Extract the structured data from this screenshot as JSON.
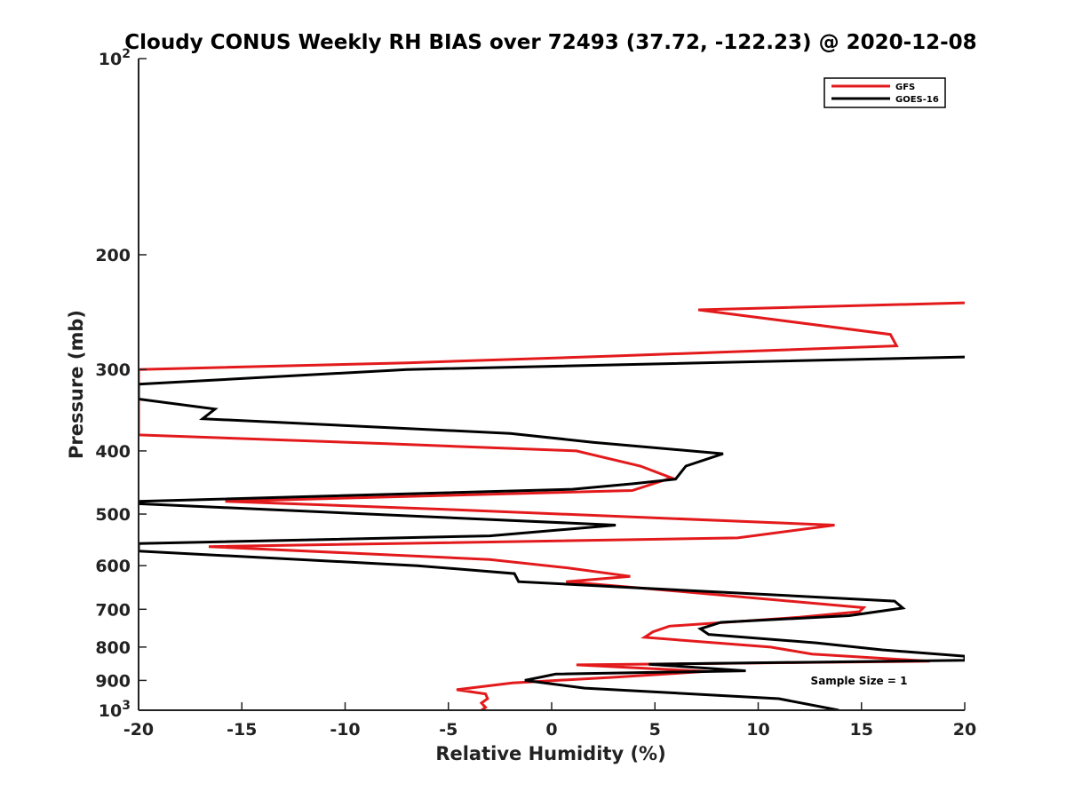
{
  "chart_data": {
    "type": "line",
    "title": "Cloudy CONUS Weekly RH BIAS over 72493 (37.72, -122.23) @ 2020-12-08",
    "xlabel": "Relative Humidity (%)",
    "ylabel": "Pressure (mb)",
    "xlim": [
      -20,
      20
    ],
    "ylim": [
      100,
      1000
    ],
    "y_scale": "log",
    "y_reversed": true,
    "grid": false,
    "legend_position": "top-right",
    "x_ticks": [
      "-20",
      "-15",
      "-10",
      "-5",
      "0",
      "5",
      "10",
      "15",
      "20"
    ],
    "y_ticks": [
      {
        "value": 100,
        "base": "10",
        "exp": "2"
      },
      {
        "value": 200,
        "label": "200"
      },
      {
        "value": 300,
        "label": "300"
      },
      {
        "value": 400,
        "label": "400"
      },
      {
        "value": 500,
        "label": "500"
      },
      {
        "value": 600,
        "label": "600"
      },
      {
        "value": 700,
        "label": "700"
      },
      {
        "value": 800,
        "label": "800"
      },
      {
        "value": 900,
        "label": "900"
      },
      {
        "value": 1000,
        "base": "10",
        "exp": "3"
      }
    ],
    "annotation": "Sample Size = 1",
    "series": [
      {
        "name": "GFS",
        "color": "#e31a1c",
        "points": [
          [
            20.0,
            237
          ],
          [
            7.1,
            243
          ],
          [
            16.4,
            265
          ],
          [
            16.7,
            276
          ],
          [
            3.0,
            286
          ],
          [
            -7.0,
            293
          ],
          [
            -20.0,
            300
          ],
          [
            -20.0,
            378
          ],
          [
            -8.0,
            390
          ],
          [
            1.2,
            400
          ],
          [
            4.3,
            422
          ],
          [
            5.8,
            440
          ],
          [
            3.9,
            460
          ],
          [
            -15.8,
            478
          ],
          [
            -5.0,
            492
          ],
          [
            13.7,
            520
          ],
          [
            9.0,
            544
          ],
          [
            -16.6,
            561
          ],
          [
            -3.0,
            587
          ],
          [
            0.8,
            605
          ],
          [
            3.8,
            623
          ],
          [
            0.7,
            635
          ],
          [
            4.5,
            650
          ],
          [
            15.1,
            696
          ],
          [
            14.9,
            706
          ],
          [
            12.0,
            720
          ],
          [
            5.7,
            743
          ],
          [
            4.9,
            758
          ],
          [
            4.5,
            773
          ],
          [
            10.6,
            800
          ],
          [
            12.6,
            820
          ],
          [
            18.3,
            841
          ],
          [
            1.2,
            852
          ],
          [
            7.5,
            872
          ],
          [
            3.0,
            890
          ],
          [
            -1.9,
            908
          ],
          [
            -4.6,
            930
          ],
          [
            -3.2,
            944
          ],
          [
            -3.1,
            960
          ],
          [
            -3.4,
            975
          ],
          [
            -3.2,
            990
          ],
          [
            -3.4,
            1000
          ]
        ]
      },
      {
        "name": "GOES-16",
        "color": "#000000",
        "points": [
          [
            20.0,
            287
          ],
          [
            -7.0,
            300
          ],
          [
            -20.0,
            316
          ],
          [
            -20.0,
            333
          ],
          [
            -16.3,
            345
          ],
          [
            -16.9,
            357
          ],
          [
            -2.0,
            376
          ],
          [
            2.0,
            388
          ],
          [
            8.3,
            404
          ],
          [
            6.5,
            422
          ],
          [
            6.0,
            442
          ],
          [
            4.0,
            449
          ],
          [
            1.0,
            458
          ],
          [
            -20.0,
            478
          ],
          [
            -20.0,
            482
          ],
          [
            3.1,
            520
          ],
          [
            -3.0,
            540
          ],
          [
            -20.0,
            555
          ],
          [
            -20.0,
            570
          ],
          [
            -6.5,
            600
          ],
          [
            -1.8,
            617
          ],
          [
            -1.6,
            635
          ],
          [
            4.2,
            649
          ],
          [
            16.6,
            680
          ],
          [
            17.0,
            697
          ],
          [
            14.4,
            716
          ],
          [
            8.2,
            733
          ],
          [
            7.2,
            750
          ],
          [
            7.6,
            765
          ],
          [
            12.8,
            788
          ],
          [
            16.0,
            808
          ],
          [
            20.0,
            826
          ],
          [
            20.0,
            838
          ],
          [
            4.7,
            850
          ],
          [
            9.4,
            870
          ],
          [
            0.2,
            880
          ],
          [
            -1.3,
            900
          ],
          [
            1.6,
            925
          ],
          [
            11.0,
            960
          ],
          [
            13.9,
            1000
          ]
        ]
      }
    ]
  }
}
